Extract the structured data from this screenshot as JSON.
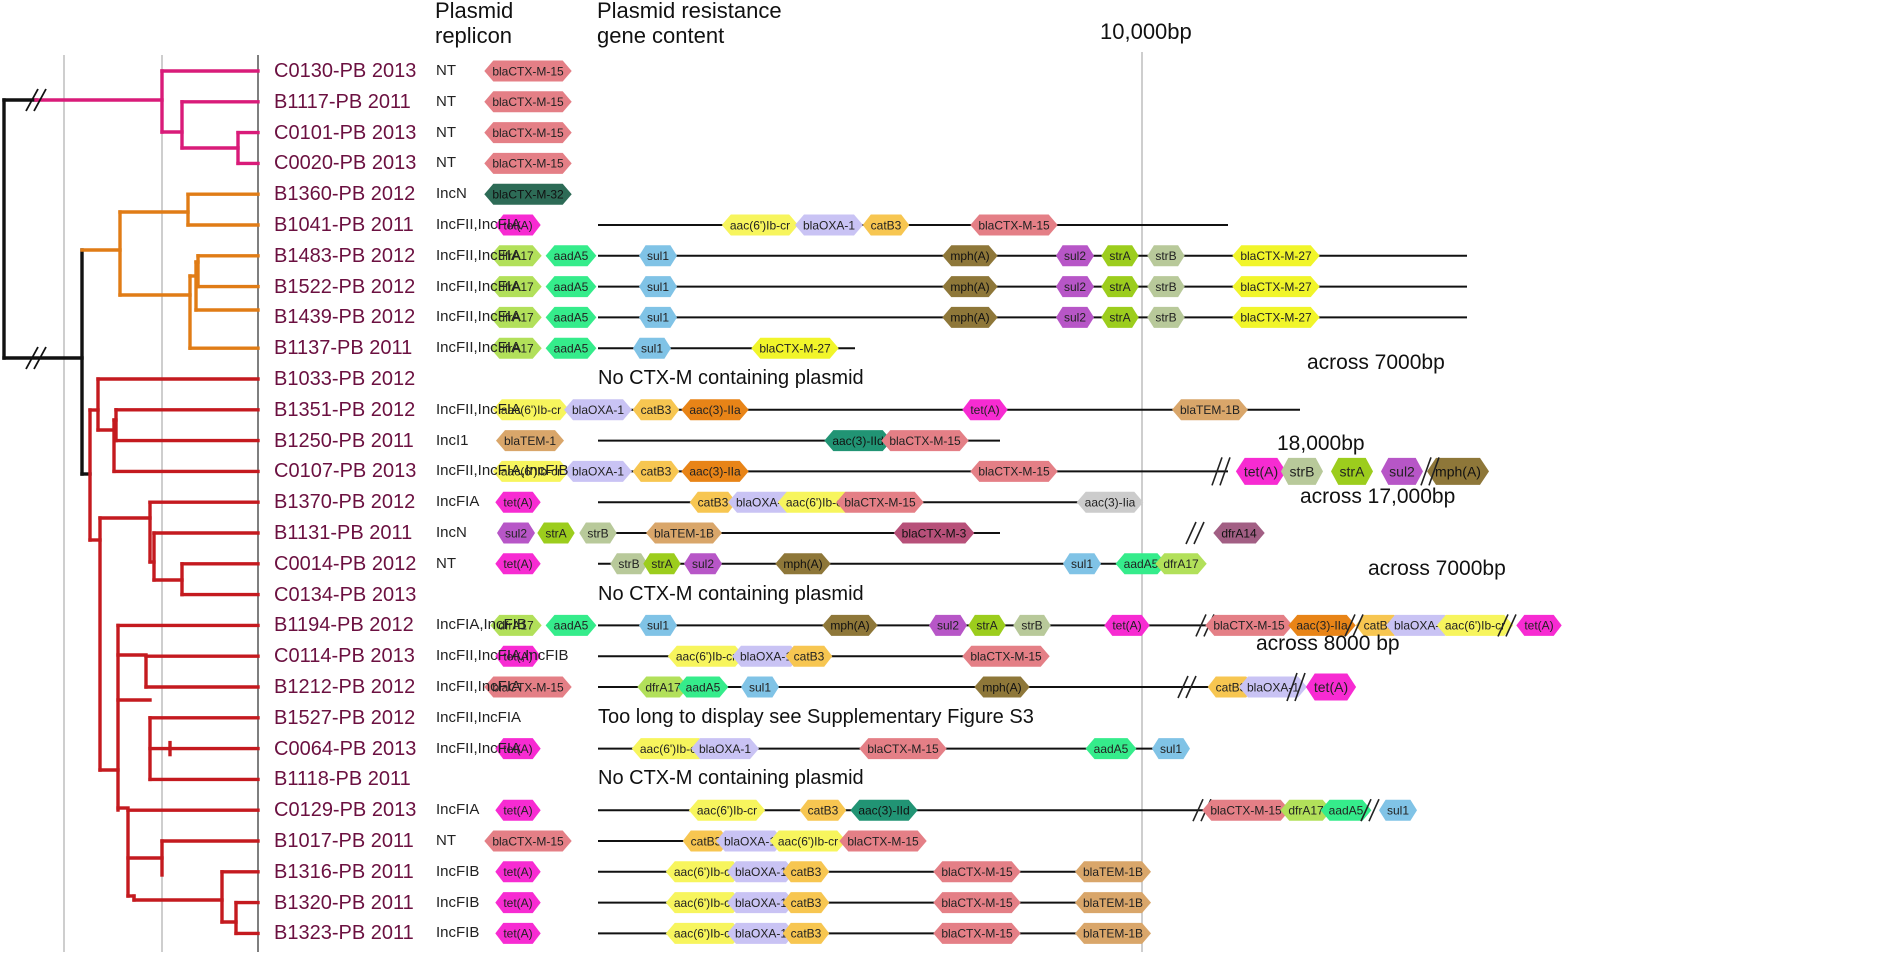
{
  "headers": {
    "replicon_line1": "Plasmid",
    "replicon_line2": "replicon",
    "content_line1": "Plasmid resistance",
    "content_line2": "gene content",
    "scale": "10,000bp"
  },
  "colors": {
    "blaCTX-M-15": "#e47f86",
    "blaCTX-M-32": "#2d6b56",
    "blaCTX-M-27": "#f1f52a",
    "blaCTX-M-3": "#b75079",
    "tet(A)": "#f72bd2",
    "aac(6')Ib-cr": "#f7f55d",
    "blaOXA-1": "#c9c3f4",
    "catB3": "#f7c651",
    "dfrA17": "#b2e05a",
    "aadA5": "#35ec8b",
    "sul1": "#80c3e6",
    "sul2": "#b756c7",
    "strA": "#9ccd1d",
    "strB": "#b8c99a",
    "mph(A)": "#8e7739",
    "aac(3)-IIa": "#e88417",
    "aac(3)-IId": "#219474",
    "blaTEM-1": "#d9a66a",
    "blaTEM-1B": "#d9a66a",
    "dfrA14": "#a25f84",
    "clade_pink": "#d91b79",
    "clade_orange": "#e07c16",
    "clade_red": "#c41a1f"
  },
  "rows": [
    {
      "isolate": "C0130-PB 2013",
      "replicon": "NT",
      "line": null,
      "genes": [
        {
          "name": "blaCTX-M-15",
          "x": 528
        }
      ],
      "extra": [],
      "message": null,
      "note": null
    },
    {
      "isolate": "B1117-PB 2011",
      "replicon": "NT",
      "line": null,
      "genes": [
        {
          "name": "blaCTX-M-15",
          "x": 528
        }
      ],
      "extra": [],
      "message": null,
      "note": null
    },
    {
      "isolate": "C0101-PB 2013",
      "replicon": "NT",
      "line": null,
      "genes": [
        {
          "name": "blaCTX-M-15",
          "x": 528
        }
      ],
      "extra": [],
      "message": null,
      "note": null
    },
    {
      "isolate": "C0020-PB 2013",
      "replicon": "NT",
      "line": null,
      "genes": [
        {
          "name": "blaCTX-M-15",
          "x": 528
        }
      ],
      "extra": [],
      "message": null,
      "note": null
    },
    {
      "isolate": "B1360-PB 2012",
      "replicon": "IncN",
      "line": null,
      "genes": [
        {
          "name": "blaCTX-M-32",
          "x": 528
        }
      ],
      "extra": [],
      "message": null,
      "note": null
    },
    {
      "isolate": "B1041-PB 2011",
      "replicon": "IncFII,IncFIA",
      "line": [
        598,
        1228
      ],
      "genes": [
        {
          "name": "tet(A)",
          "x": 518
        },
        {
          "name": "aac(6')Ib-cr",
          "x": 760
        },
        {
          "name": "blaOXA-1",
          "x": 829
        },
        {
          "name": "catB3",
          "x": 886
        },
        {
          "name": "blaCTX-M-15",
          "x": 1014
        }
      ],
      "extra": [],
      "message": null,
      "note": null
    },
    {
      "isolate": "B1483-PB 2012",
      "replicon": "IncFII,IncFIA",
      "line": [
        598,
        1467
      ],
      "genes": [
        {
          "name": "dfrA17",
          "x": 516
        },
        {
          "name": "aadA5",
          "x": 571
        },
        {
          "name": "sul1",
          "x": 658
        },
        {
          "name": "mph(A)",
          "x": 970
        },
        {
          "name": "sul2",
          "x": 1075
        },
        {
          "name": "strA",
          "x": 1120
        },
        {
          "name": "strB",
          "x": 1166
        },
        {
          "name": "blaCTX-M-27",
          "x": 1276
        }
      ],
      "extra": [],
      "message": null,
      "note": null
    },
    {
      "isolate": "B1522-PB 2012",
      "replicon": "IncFII,IncFIA",
      "line": [
        598,
        1467
      ],
      "genes": [
        {
          "name": "dfrA17",
          "x": 516
        },
        {
          "name": "aadA5",
          "x": 571
        },
        {
          "name": "sul1",
          "x": 658
        },
        {
          "name": "mph(A)",
          "x": 970
        },
        {
          "name": "sul2",
          "x": 1075
        },
        {
          "name": "strA",
          "x": 1120
        },
        {
          "name": "strB",
          "x": 1166
        },
        {
          "name": "blaCTX-M-27",
          "x": 1276
        }
      ],
      "extra": [],
      "message": null,
      "note": null
    },
    {
      "isolate": "B1439-PB 2012",
      "replicon": "IncFII,IncFIA",
      "line": [
        598,
        1467
      ],
      "genes": [
        {
          "name": "dfrA17",
          "x": 516
        },
        {
          "name": "aadA5",
          "x": 571
        },
        {
          "name": "sul1",
          "x": 658
        },
        {
          "name": "mph(A)",
          "x": 970
        },
        {
          "name": "sul2",
          "x": 1075
        },
        {
          "name": "strA",
          "x": 1120
        },
        {
          "name": "strB",
          "x": 1166
        },
        {
          "name": "blaCTX-M-27",
          "x": 1276
        }
      ],
      "extra": [],
      "message": null,
      "note": null
    },
    {
      "isolate": "B1137-PB 2011",
      "replicon": "IncFII,IncFIA",
      "line": [
        598,
        855
      ],
      "genes": [
        {
          "name": "dfrA17",
          "x": 516
        },
        {
          "name": "aadA5",
          "x": 571
        },
        {
          "name": "sul1",
          "x": 652
        },
        {
          "name": "blaCTX-M-27",
          "x": 795
        }
      ],
      "extra": [],
      "message": null,
      "note": null
    },
    {
      "isolate": "B1033-PB 2012",
      "replicon": "",
      "line": null,
      "genes": [],
      "extra": [],
      "message": "No CTX-M containing plasmid",
      "note": null
    },
    {
      "isolate": "B1351-PB 2012",
      "replicon": "IncFII,IncFIA",
      "line": [
        598,
        1300
      ],
      "genes": [
        {
          "name": "aac(6')Ib-cr",
          "x": 531
        },
        {
          "name": "blaOXA-1",
          "x": 598
        },
        {
          "name": "catB3",
          "x": 656
        },
        {
          "name": "aac(3)-IIa",
          "x": 715
        },
        {
          "name": "tet(A)",
          "x": 985
        },
        {
          "name": "blaTEM-1B",
          "x": 1210
        }
      ],
      "extra": [],
      "message": null,
      "note": null
    },
    {
      "isolate": "B1250-PB 2011",
      "replicon": "IncI1",
      "line": [
        598,
        1000
      ],
      "genes": [
        {
          "name": "blaTEM-1",
          "x": 530
        },
        {
          "name": "aac(3)-IId",
          "x": 858
        },
        {
          "name": "blaCTX-M-15",
          "x": 925
        }
      ],
      "extra": [],
      "message": null,
      "note": null
    },
    {
      "isolate": "C0107-PB 2013",
      "replicon": "IncFII,IncFIA,IncFIB",
      "line": [
        598,
        1228
      ],
      "genes": [
        {
          "name": "aac(6')Ib-cr",
          "x": 531
        },
        {
          "name": "blaOXA-1",
          "x": 598
        },
        {
          "name": "catB3",
          "x": 656
        },
        {
          "name": "aac(3)-IIa",
          "x": 715
        },
        {
          "name": "blaCTX-M-15",
          "x": 1014
        }
      ],
      "extra": [
        {
          "name": "tet(A)",
          "x": 1261,
          "big": true
        },
        {
          "name": "strB",
          "x": 1302,
          "big": true
        },
        {
          "name": "strA",
          "x": 1352,
          "big": true
        },
        {
          "name": "sul2",
          "x": 1402,
          "big": true
        },
        {
          "name": "mph(A)",
          "x": 1458,
          "big": true
        }
      ],
      "message": null,
      "note": {
        "text": "across 7000bp",
        "x": 1307,
        "y": 352
      }
    },
    {
      "isolate": "B1370-PB 2012",
      "replicon": "IncFIA",
      "line": [
        598,
        1130
      ],
      "genes": [
        {
          "name": "tet(A)",
          "x": 518
        },
        {
          "name": "catB3",
          "x": 713
        },
        {
          "name": "blaOXA-1",
          "x": 762
        },
        {
          "name": "aac(6')Ib-cr",
          "x": 816
        },
        {
          "name": "blaCTX-M-15",
          "x": 880
        },
        {
          "name": "aac(3)-Iia",
          "x": 1110
        }
      ],
      "extra": [],
      "message": null,
      "note": null
    },
    {
      "isolate": "B1131-PB 2011",
      "replicon": "IncN",
      "line": [
        598,
        1000
      ],
      "genes": [
        {
          "name": "sul2",
          "x": 516
        },
        {
          "name": "strA",
          "x": 556
        },
        {
          "name": "strB",
          "x": 598
        },
        {
          "name": "blaTEM-1B",
          "x": 684
        },
        {
          "name": "blaCTX-M-3",
          "x": 934
        }
      ],
      "extra": [
        {
          "name": "dfrA14",
          "x": 1239,
          "big": false
        }
      ],
      "message": null,
      "note": {
        "text": "18,000bp",
        "x": 1277,
        "y": 433
      }
    },
    {
      "isolate": "C0014-PB 2012",
      "replicon": "NT",
      "line": [
        598,
        1140
      ],
      "genes": [
        {
          "name": "tet(A)",
          "x": 518
        },
        {
          "name": "strB",
          "x": 629
        },
        {
          "name": "strA",
          "x": 662
        },
        {
          "name": "sul2",
          "x": 703
        },
        {
          "name": "mph(A)",
          "x": 803
        },
        {
          "name": "sul1",
          "x": 1082
        },
        {
          "name": "aadA5",
          "x": 1141
        },
        {
          "name": "dfrA17",
          "x": 1181
        }
      ],
      "extra": [],
      "message": null,
      "note": null
    },
    {
      "isolate": "C0134-PB 2013",
      "replicon": "",
      "line": null,
      "genes": [],
      "extra": [],
      "message": "No CTX-M containing plasmid",
      "note": null
    },
    {
      "isolate": "B1194-PB 2012",
      "replicon": "IncFIA,IncFIB",
      "line": [
        598,
        1228
      ],
      "genes": [
        {
          "name": "dfrA17",
          "x": 516
        },
        {
          "name": "aadA5",
          "x": 571
        },
        {
          "name": "sul1",
          "x": 658
        },
        {
          "name": "mph(A)",
          "x": 850
        },
        {
          "name": "sul2",
          "x": 948
        },
        {
          "name": "strA",
          "x": 987
        },
        {
          "name": "strB",
          "x": 1032
        },
        {
          "name": "tet(A)",
          "x": 1127
        }
      ],
      "extra": [
        {
          "name": "blaCTX-M-15",
          "x": 1249,
          "big": false
        },
        {
          "name": "aac(3)-IIa",
          "x": 1322,
          "big": false
        },
        {
          "name": "catB3",
          "x": 1379,
          "big": false
        },
        {
          "name": "blaOXA-1",
          "x": 1420,
          "big": false
        },
        {
          "name": "aac(6')Ib-cr",
          "x": 1475,
          "big": false
        },
        {
          "name": "tet(A)",
          "x": 1539,
          "big": false
        }
      ],
      "message": null,
      "note": {
        "text": "across 17,000bp",
        "x": 1300,
        "y": 486
      }
    },
    {
      "isolate": "C0114-PB 2013",
      "replicon": "IncFII,IncFIA,IncFIB",
      "line": [
        598,
        1040
      ],
      "genes": [
        {
          "name": "tet(A)",
          "x": 518
        },
        {
          "name": "aac(6')Ib-cr",
          "x": 706
        },
        {
          "name": "blaOXA-1",
          "x": 766
        },
        {
          "name": "catB3",
          "x": 809
        },
        {
          "name": "blaCTX-M-15",
          "x": 1006
        }
      ],
      "extra": [],
      "message": null,
      "note": null
    },
    {
      "isolate": "B1212-PB 2012",
      "replicon": "IncFII,IncFIA",
      "line": [
        598,
        1228
      ],
      "genes": [
        {
          "name": "blaCTX-M-15",
          "x": 528
        },
        {
          "name": "dfrA17",
          "x": 663
        },
        {
          "name": "aadA5",
          "x": 703
        },
        {
          "name": "sul1",
          "x": 760
        },
        {
          "name": "mph(A)",
          "x": 1002
        }
      ],
      "extra": [
        {
          "name": "catB3",
          "x": 1231,
          "big": false
        },
        {
          "name": "blaOXA-1",
          "x": 1273,
          "big": false
        },
        {
          "name": "tet(A)",
          "x": 1331,
          "big": true
        }
      ],
      "message": null,
      "note": {
        "text": "across 7000bp",
        "x": 1368,
        "y": 558
      }
    },
    {
      "isolate": "B1527-PB 2012",
      "replicon": "IncFII,IncFIA",
      "line": null,
      "genes": [],
      "extra": [],
      "message": "Too long to display see Supplementary Figure S3",
      "note": null
    },
    {
      "isolate": "C0064-PB 2013",
      "replicon": "IncFII,IncFIA",
      "line": [
        598,
        1170
      ],
      "genes": [
        {
          "name": "tet(A)",
          "x": 518
        },
        {
          "name": "aac(6')Ib-cr",
          "x": 670
        },
        {
          "name": "blaOXA-1",
          "x": 725
        },
        {
          "name": "blaCTX-M-15",
          "x": 903
        },
        {
          "name": "aadA5",
          "x": 1111
        },
        {
          "name": "sul1",
          "x": 1171
        }
      ],
      "extra": [],
      "message": null,
      "note": null
    },
    {
      "isolate": "B1118-PB 2011",
      "replicon": "",
      "line": null,
      "genes": [],
      "extra": [],
      "message": "No CTX-M containing plasmid",
      "note": null
    },
    {
      "isolate": "C0129-PB 2013",
      "replicon": "IncFIA",
      "line": [
        598,
        1228
      ],
      "genes": [
        {
          "name": "tet(A)",
          "x": 518
        },
        {
          "name": "aac(6')Ib-cr",
          "x": 727
        },
        {
          "name": "catB3",
          "x": 823
        },
        {
          "name": "aac(3)-IId",
          "x": 884
        }
      ],
      "extra": [
        {
          "name": "blaCTX-M-15",
          "x": 1246,
          "big": false
        },
        {
          "name": "dfrA17",
          "x": 1306,
          "big": false
        },
        {
          "name": "aadA5",
          "x": 1346,
          "big": false
        },
        {
          "name": "sul1",
          "x": 1398,
          "big": false
        }
      ],
      "message": null,
      "note": {
        "text": "across 8000 bp",
        "x": 1256,
        "y": 633
      }
    },
    {
      "isolate": "B1017-PB 2011",
      "replicon": "NT",
      "line": [
        598,
        900
      ],
      "genes": [
        {
          "name": "blaCTX-M-15",
          "x": 528
        },
        {
          "name": "catB3",
          "x": 706
        },
        {
          "name": "blaOXA-1",
          "x": 750
        },
        {
          "name": "aac(6')Ib-cr",
          "x": 808
        },
        {
          "name": "blaCTX-M-15",
          "x": 883
        }
      ],
      "extra": [],
      "message": null,
      "note": null
    },
    {
      "isolate": "B1316-PB 2011",
      "replicon": "IncFIB",
      "line": [
        598,
        1140
      ],
      "genes": [
        {
          "name": "tet(A)",
          "x": 518
        },
        {
          "name": "aac(6')Ib-cr",
          "x": 704
        },
        {
          "name": "blaOXA-1",
          "x": 761
        },
        {
          "name": "catB3",
          "x": 806
        },
        {
          "name": "blaCTX-M-15",
          "x": 977
        },
        {
          "name": "blaTEM-1B",
          "x": 1113
        }
      ],
      "extra": [],
      "message": null,
      "note": null
    },
    {
      "isolate": "B1320-PB 2011",
      "replicon": "IncFIB",
      "line": [
        598,
        1140
      ],
      "genes": [
        {
          "name": "tet(A)",
          "x": 518
        },
        {
          "name": "aac(6')Ib-cr",
          "x": 704
        },
        {
          "name": "blaOXA-1",
          "x": 761
        },
        {
          "name": "catB3",
          "x": 806
        },
        {
          "name": "blaCTX-M-15",
          "x": 977
        },
        {
          "name": "blaTEM-1B",
          "x": 1113
        }
      ],
      "extra": [],
      "message": null,
      "note": null
    },
    {
      "isolate": "B1323-PB 2011",
      "replicon": "IncFIB",
      "line": [
        598,
        1140
      ],
      "genes": [
        {
          "name": "tet(A)",
          "x": 518
        },
        {
          "name": "aac(6')Ib-cr",
          "x": 704
        },
        {
          "name": "blaOXA-1",
          "x": 761
        },
        {
          "name": "catB3",
          "x": 806
        },
        {
          "name": "blaCTX-M-15",
          "x": 977
        },
        {
          "name": "blaTEM-1B",
          "x": 1113
        }
      ],
      "extra": [],
      "message": null,
      "note": null
    }
  ]
}
